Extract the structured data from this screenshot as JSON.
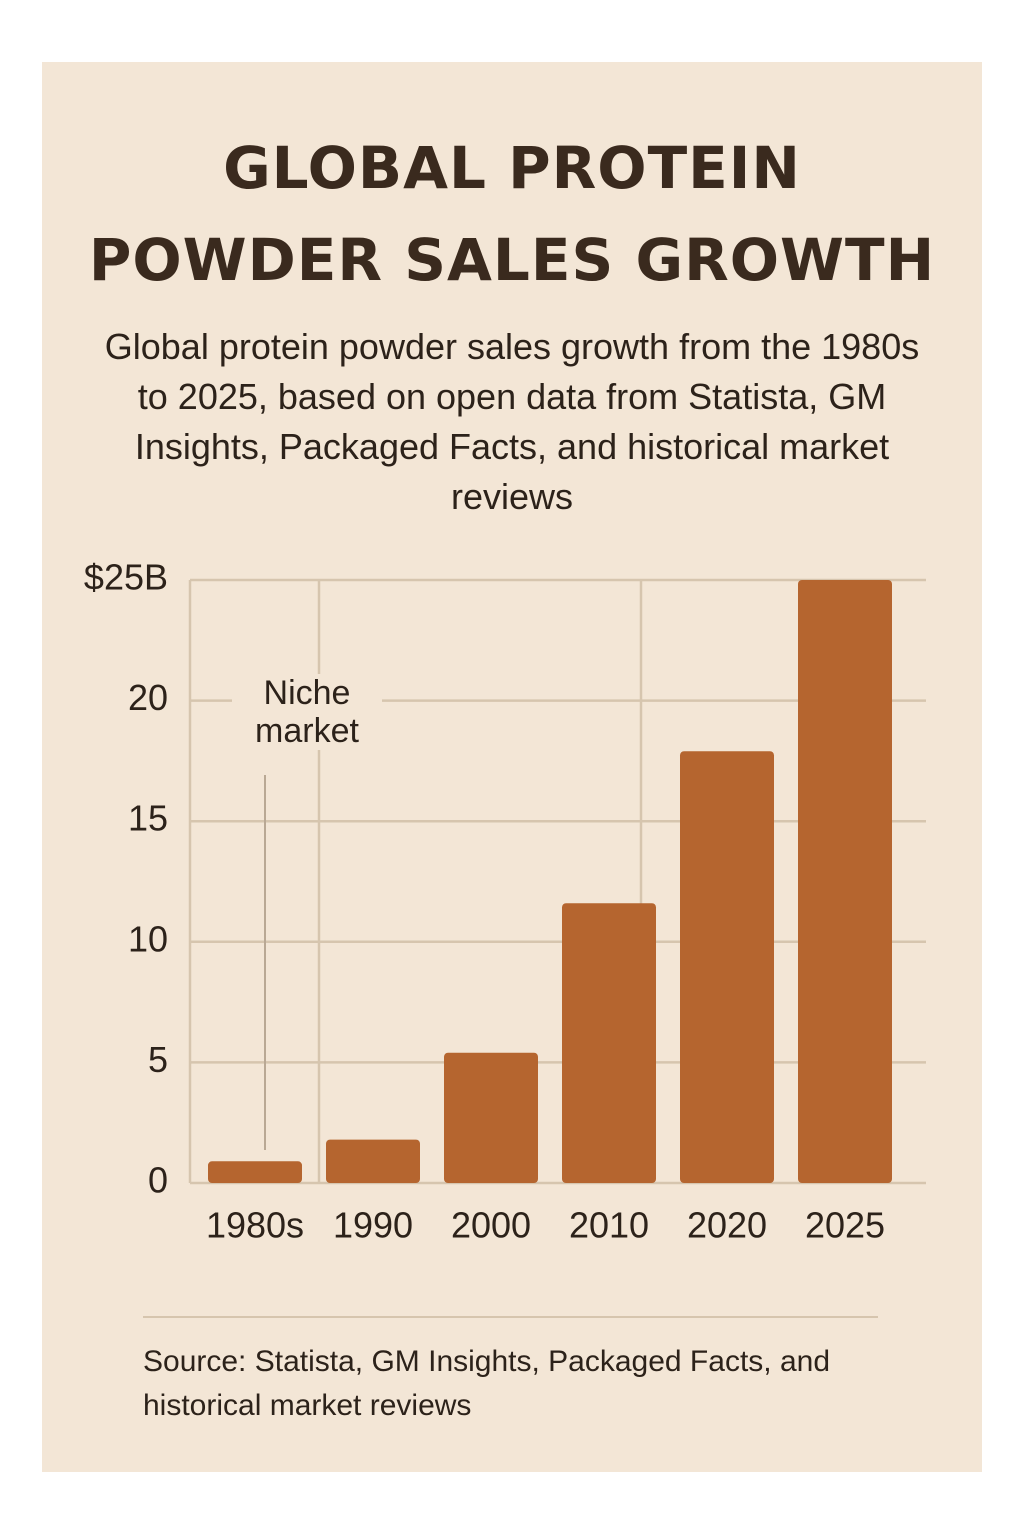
{
  "chart_data": {
    "type": "bar",
    "title": "GLOBAL PROTEIN POWDER SALES GROWTH",
    "subtitle": "Global protein powder sales growth from the 1980s to 2025, based on open data from Statista, GM Insights, Packaged Facts, and historical market reviews",
    "categories": [
      "1980s",
      "1990",
      "2000",
      "2010",
      "2020",
      "2025"
    ],
    "values": [
      0.9,
      1.8,
      5.4,
      11.6,
      17.9,
      25
    ],
    "color": "#b5652f",
    "ylim": [
      0,
      25
    ],
    "yticks": [
      0,
      5,
      10,
      15,
      20,
      {
        "value": 25,
        "label": "$25B"
      }
    ],
    "grid": true,
    "annotation": "Niche market",
    "source": "Source: Statista, GM Insights, Packaged Facts, and historical market reviews"
  }
}
